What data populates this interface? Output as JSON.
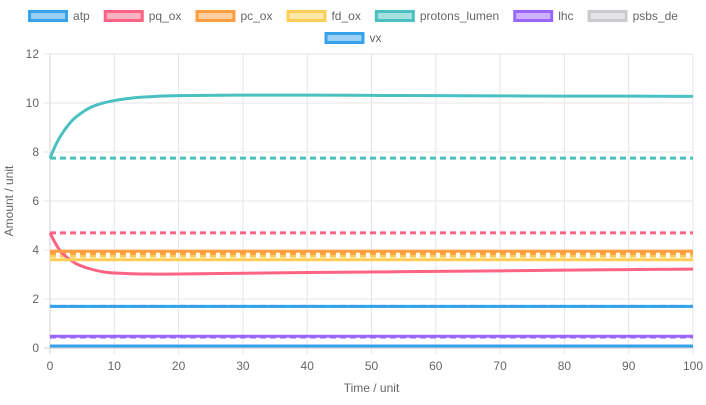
{
  "chart_data": {
    "type": "line",
    "title": "",
    "xlabel": "Time / unit",
    "ylabel": "Amount / unit",
    "xlim": [
      0,
      100
    ],
    "ylim": [
      0,
      12
    ],
    "x_ticks": [
      0,
      10,
      20,
      30,
      40,
      50,
      60,
      70,
      80,
      90,
      100
    ],
    "y_ticks": [
      0,
      2,
      4,
      6,
      8,
      10,
      12
    ],
    "grid": true,
    "legend_position": "top",
    "series": [
      {
        "name": "atp",
        "color": "#36a2eb",
        "fill": "#9ad0f5",
        "points": [
          [
            0,
            1.7
          ],
          [
            100,
            1.7
          ]
        ],
        "reference": 1.7
      },
      {
        "name": "pq_ox",
        "color": "#ff6384",
        "fill": "#ffb1c1",
        "points": [
          [
            0,
            4.7
          ],
          [
            1,
            4.2
          ],
          [
            2,
            3.85
          ],
          [
            4,
            3.45
          ],
          [
            6,
            3.25
          ],
          [
            8,
            3.12
          ],
          [
            10,
            3.06
          ],
          [
            15,
            3.02
          ],
          [
            20,
            3.02
          ],
          [
            30,
            3.05
          ],
          [
            40,
            3.08
          ],
          [
            50,
            3.1
          ],
          [
            60,
            3.13
          ],
          [
            70,
            3.15
          ],
          [
            80,
            3.18
          ],
          [
            90,
            3.2
          ],
          [
            100,
            3.22
          ]
        ],
        "reference": 4.7
      },
      {
        "name": "pc_ox",
        "color": "#ff9f40",
        "fill": "#ffcf9f",
        "points": [
          [
            0,
            3.95
          ],
          [
            100,
            3.95
          ]
        ],
        "reference": 3.85
      },
      {
        "name": "fd_ox",
        "color": "#ffcd56",
        "fill": "#ffe6aa",
        "points": [
          [
            0,
            3.6
          ],
          [
            100,
            3.6
          ]
        ],
        "reference": 3.75
      },
      {
        "name": "protons_lumen",
        "color": "#4bc0c0",
        "fill": "#a5dfdf",
        "points": [
          [
            0,
            7.75
          ],
          [
            1,
            8.35
          ],
          [
            2,
            8.8
          ],
          [
            3,
            9.15
          ],
          [
            4,
            9.42
          ],
          [
            6,
            9.78
          ],
          [
            8,
            9.98
          ],
          [
            10,
            10.1
          ],
          [
            12,
            10.18
          ],
          [
            15,
            10.25
          ],
          [
            20,
            10.3
          ],
          [
            30,
            10.32
          ],
          [
            40,
            10.32
          ],
          [
            50,
            10.31
          ],
          [
            60,
            10.3
          ],
          [
            70,
            10.29
          ],
          [
            80,
            10.28
          ],
          [
            90,
            10.28
          ],
          [
            100,
            10.27
          ]
        ],
        "reference": 7.75
      },
      {
        "name": "lhc",
        "color": "#9966ff",
        "fill": "#ccb2ff",
        "points": [
          [
            0,
            0.48
          ],
          [
            100,
            0.48
          ]
        ],
        "reference": 0.45
      },
      {
        "name": "psbs_de",
        "color": "#c9cbcf",
        "fill": "#e4e5e7",
        "points": [
          [
            0,
            0.05
          ],
          [
            100,
            0.05
          ]
        ],
        "reference": 0.05
      },
      {
        "name": "vx",
        "color": "#36a2eb",
        "fill": "#9ad0f5",
        "points": [
          [
            0,
            0.08
          ],
          [
            100,
            0.08
          ]
        ],
        "reference": 0.08
      }
    ]
  }
}
